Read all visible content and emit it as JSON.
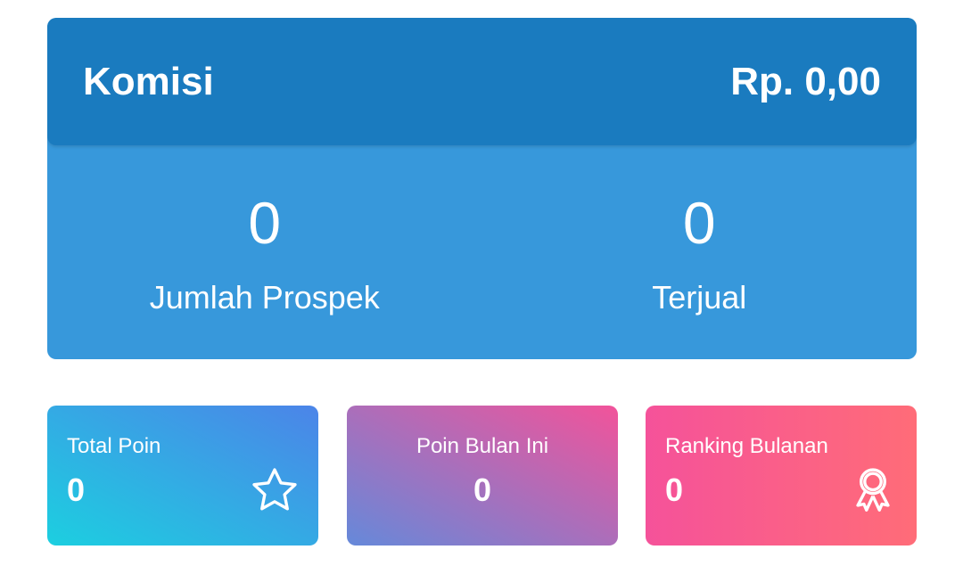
{
  "commission": {
    "label": "Komisi",
    "value": "Rp. 0,00",
    "header_color": "#1a7bbf",
    "body_color": "#3798db"
  },
  "stats": [
    {
      "value": "0",
      "label": "Jumlah Prospek"
    },
    {
      "value": "0",
      "label": "Terjual"
    }
  ],
  "cards": [
    {
      "label": "Total Poin",
      "value": "0",
      "icon": "star-icon"
    },
    {
      "label": "Poin Bulan Ini",
      "value": "0"
    },
    {
      "label": "Ranking Bulanan",
      "value": "0",
      "icon": "award-ribbon-icon"
    }
  ]
}
